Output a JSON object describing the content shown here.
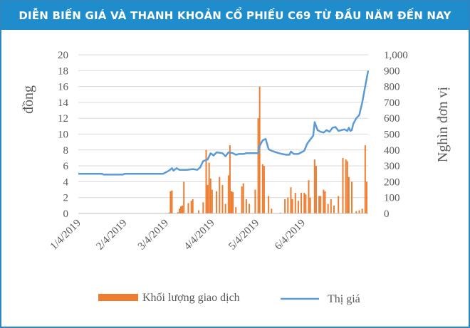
{
  "header": {
    "title": "DIỄN BIẾN GIÁ VÀ THANH KHOẢN CỔ PHIẾU C69 TỪ ĐẦU NĂM ĐẾN NAY"
  },
  "colors": {
    "banner": "#1f8ccc",
    "price_line": "#5b9bd5",
    "volume_bars": "#ed7d31",
    "frame": "#2e86c1"
  },
  "chart_data": {
    "type": "bar+line",
    "title": "DIỄN BIẾN GIÁ VÀ THANH KHOẢN CỔ PHIẾU C69 TỪ ĐẦU NĂM ĐẾN NAY",
    "x_ticks": [
      "1/4/2019",
      "2/4/2019",
      "3/4/2019",
      "4/4/2019",
      "5/4/2019",
      "6/4/2019"
    ],
    "y_left": {
      "label": "đồng",
      "min": 0,
      "max": 20,
      "ticks": [
        "0",
        "2",
        "4",
        "6",
        "8",
        "10",
        "12",
        "14",
        "16",
        "18",
        "20"
      ]
    },
    "y_right": {
      "label": "Nghìn đơn vị",
      "min": 0,
      "max": 1000,
      "ticks": [
        "0",
        "100",
        "200",
        "300",
        "400",
        "500",
        "600",
        "700",
        "800",
        "900",
        "1,000"
      ]
    },
    "grid": true,
    "legend": {
      "position": "bottom"
    },
    "series": [
      {
        "name": "Thị giá",
        "type": "line",
        "axis": "left",
        "points": [
          [
            "2019-01-04",
            5.0
          ],
          [
            "2019-01-20",
            5.0
          ],
          [
            "2019-01-21",
            4.9
          ],
          [
            "2019-02-03",
            4.9
          ],
          [
            "2019-02-04",
            5.0
          ],
          [
            "2019-02-27",
            5.0
          ],
          [
            "2019-03-02",
            5.0
          ],
          [
            "2019-03-06",
            5.4
          ],
          [
            "2019-03-08",
            5.7
          ],
          [
            "2019-03-09",
            5.4
          ],
          [
            "2019-03-11",
            5.7
          ],
          [
            "2019-03-13",
            5.5
          ],
          [
            "2019-03-18",
            5.5
          ],
          [
            "2019-03-22",
            5.6
          ],
          [
            "2019-03-25",
            5.5
          ],
          [
            "2019-03-27",
            5.8
          ],
          [
            "2019-03-29",
            6.6
          ],
          [
            "2019-04-01",
            6.8
          ],
          [
            "2019-04-03",
            7.6
          ],
          [
            "2019-04-05",
            7.3
          ],
          [
            "2019-04-07",
            7.7
          ],
          [
            "2019-04-11",
            7.6
          ],
          [
            "2019-04-13",
            7.2
          ],
          [
            "2019-04-15",
            7.7
          ],
          [
            "2019-04-18",
            7.6
          ],
          [
            "2019-04-20",
            7.4
          ],
          [
            "2019-04-22",
            7.5
          ],
          [
            "2019-04-25",
            7.5
          ],
          [
            "2019-04-27",
            7.6
          ],
          [
            "2019-05-05",
            7.6
          ],
          [
            "2019-05-06",
            8.5
          ],
          [
            "2019-05-08",
            9.2
          ],
          [
            "2019-05-10",
            9.4
          ],
          [
            "2019-05-12",
            8.1
          ],
          [
            "2019-05-14",
            7.9
          ],
          [
            "2019-05-17",
            7.7
          ],
          [
            "2019-05-21",
            7.5
          ],
          [
            "2019-05-24",
            7.4
          ],
          [
            "2019-05-26",
            7.4
          ],
          [
            "2019-05-27",
            7.8
          ],
          [
            "2019-05-29",
            7.5
          ],
          [
            "2019-06-01",
            7.5
          ],
          [
            "2019-06-03",
            7.7
          ],
          [
            "2019-06-05",
            7.9
          ],
          [
            "2019-06-07",
            8.8
          ],
          [
            "2019-06-09",
            9.3
          ],
          [
            "2019-06-11",
            9.8
          ],
          [
            "2019-06-12",
            11.5
          ],
          [
            "2019-06-14",
            10.5
          ],
          [
            "2019-06-16",
            10.3
          ],
          [
            "2019-06-18",
            10.2
          ],
          [
            "2019-06-20",
            10.5
          ],
          [
            "2019-06-22",
            10.3
          ],
          [
            "2019-06-24",
            10.8
          ],
          [
            "2019-06-26",
            10.9
          ],
          [
            "2019-06-28",
            10.4
          ],
          [
            "2019-07-02",
            10.6
          ],
          [
            "2019-07-04",
            10.4
          ],
          [
            "2019-07-05",
            10.8
          ],
          [
            "2019-07-06",
            10.4
          ],
          [
            "2019-07-07",
            10.5
          ],
          [
            "2019-07-08",
            11.3
          ],
          [
            "2019-07-10",
            12.0
          ],
          [
            "2019-07-12",
            12.4
          ],
          [
            "2019-07-14",
            14.0
          ],
          [
            "2019-07-16",
            16.0
          ],
          [
            "2019-07-18",
            18.0
          ]
        ]
      },
      {
        "name": "Khối lượng giao dịch",
        "type": "bar",
        "axis": "right",
        "points": [
          [
            "2019-03-04",
            3
          ],
          [
            "2019-03-06",
            6
          ],
          [
            "2019-03-07",
            140
          ],
          [
            "2019-03-08",
            145
          ],
          [
            "2019-03-12",
            8
          ],
          [
            "2019-03-13",
            30
          ],
          [
            "2019-03-14",
            45
          ],
          [
            "2019-03-15",
            50
          ],
          [
            "2019-03-16",
            200
          ],
          [
            "2019-03-19",
            65
          ],
          [
            "2019-03-21",
            80
          ],
          [
            "2019-03-22",
            90
          ],
          [
            "2019-03-26",
            20
          ],
          [
            "2019-03-29",
            70
          ],
          [
            "2019-03-31",
            400
          ],
          [
            "2019-04-01",
            180
          ],
          [
            "2019-04-02",
            320
          ],
          [
            "2019-04-03",
            220
          ],
          [
            "2019-04-04",
            150
          ],
          [
            "2019-04-07",
            140
          ],
          [
            "2019-04-09",
            230
          ],
          [
            "2019-04-11",
            180
          ],
          [
            "2019-04-13",
            60
          ],
          [
            "2019-04-15",
            240
          ],
          [
            "2019-04-16",
            430
          ],
          [
            "2019-04-17",
            140
          ],
          [
            "2019-04-18",
            135
          ],
          [
            "2019-04-20",
            40
          ],
          [
            "2019-04-24",
            170
          ],
          [
            "2019-04-25",
            190
          ],
          [
            "2019-04-27",
            90
          ],
          [
            "2019-04-29",
            60
          ],
          [
            "2019-05-03",
            150
          ],
          [
            "2019-05-05",
            600
          ],
          [
            "2019-05-06",
            800
          ],
          [
            "2019-05-08",
            310
          ],
          [
            "2019-05-09",
            300
          ],
          [
            "2019-05-12",
            110
          ],
          [
            "2019-05-14",
            30
          ],
          [
            "2019-05-20",
            5
          ],
          [
            "2019-05-23",
            90
          ],
          [
            "2019-05-25",
            100
          ],
          [
            "2019-05-27",
            165
          ],
          [
            "2019-05-28",
            90
          ],
          [
            "2019-05-30",
            130
          ],
          [
            "2019-06-01",
            80
          ],
          [
            "2019-06-03",
            130
          ],
          [
            "2019-06-05",
            130
          ],
          [
            "2019-06-06",
            120
          ],
          [
            "2019-06-08",
            210
          ],
          [
            "2019-06-09",
            100
          ],
          [
            "2019-06-12",
            340
          ],
          [
            "2019-06-13",
            300
          ],
          [
            "2019-06-15",
            110
          ],
          [
            "2019-06-16",
            110
          ],
          [
            "2019-06-18",
            150
          ],
          [
            "2019-06-19",
            140
          ],
          [
            "2019-06-21",
            60
          ],
          [
            "2019-06-23",
            90
          ],
          [
            "2019-06-25",
            50
          ],
          [
            "2019-06-28",
            110
          ],
          [
            "2019-07-01",
            350
          ],
          [
            "2019-07-03",
            340
          ],
          [
            "2019-07-04",
            330
          ],
          [
            "2019-07-05",
            230
          ],
          [
            "2019-07-07",
            200
          ],
          [
            "2019-07-10",
            15
          ],
          [
            "2019-07-12",
            20
          ],
          [
            "2019-07-14",
            30
          ],
          [
            "2019-07-16",
            430
          ],
          [
            "2019-07-17",
            200
          ]
        ]
      }
    ]
  }
}
